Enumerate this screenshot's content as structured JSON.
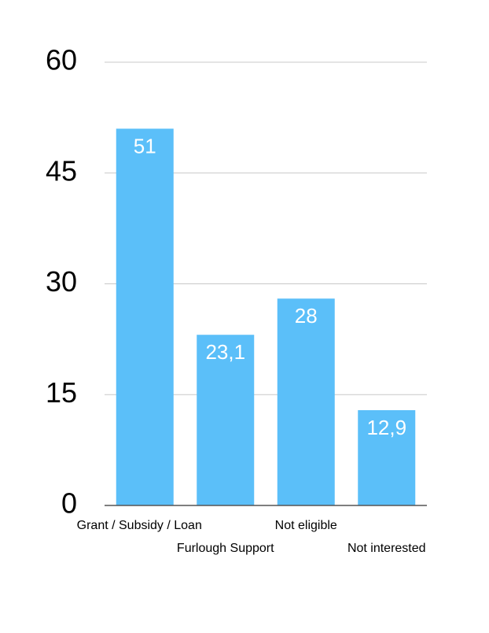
{
  "chart_data": {
    "type": "bar",
    "categories": [
      "Grant / Subsidy / Loan",
      "Furlough Support",
      "Not eligible",
      "Not interested"
    ],
    "values": [
      51,
      23.1,
      28,
      12.9
    ],
    "value_labels": [
      "51",
      "23,1",
      "28",
      "12,9"
    ],
    "color": "#5bbff9",
    "ylim": [
      0,
      60
    ],
    "yticks": [
      0,
      15,
      30,
      45,
      60
    ],
    "grid": true
  }
}
